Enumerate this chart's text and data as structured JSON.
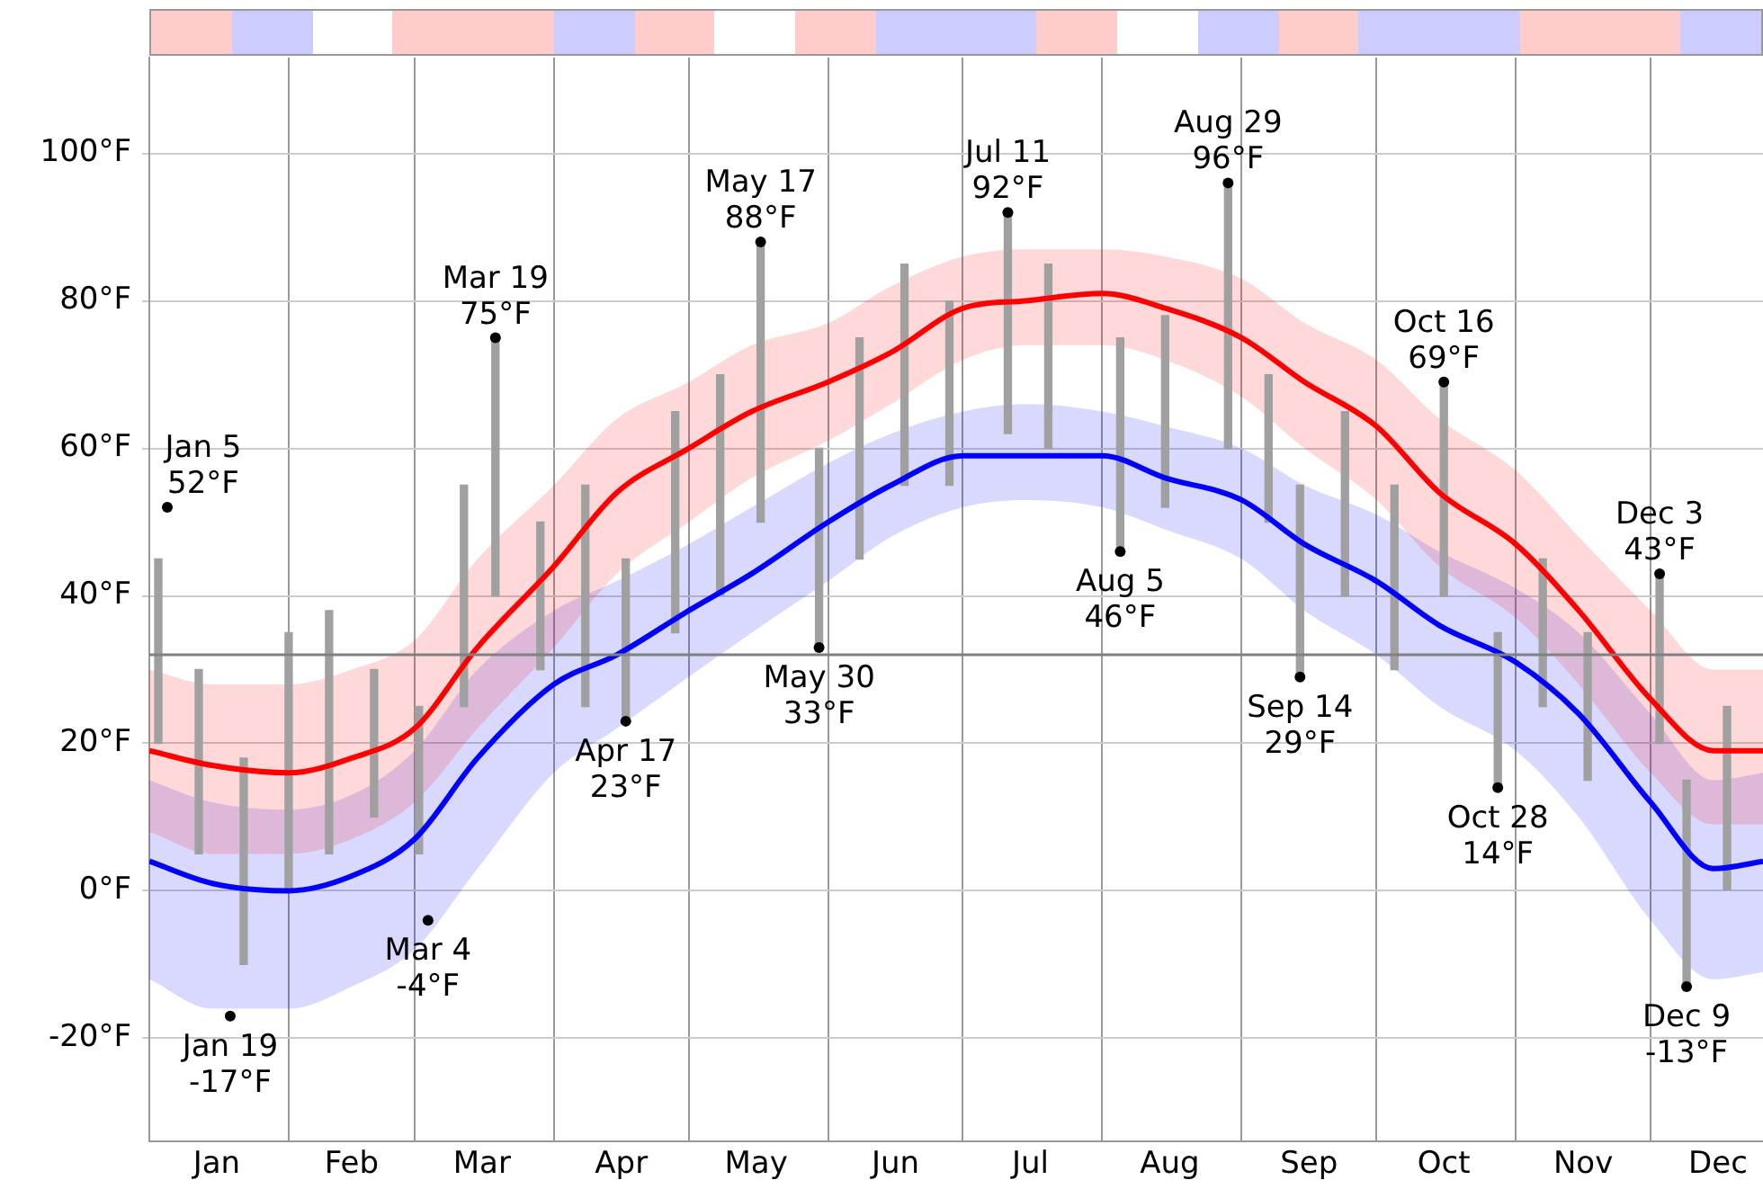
{
  "chart_data": {
    "type": "line",
    "xlim": [
      "--01-01",
      "--12-26"
    ],
    "xticks": [
      {
        "value": "--01-01",
        "label": null
      },
      {
        "value": "--01-16",
        "label": "Jan"
      },
      {
        "value": "--02-01",
        "label": null
      },
      {
        "value": "--02-15",
        "label": "Feb"
      },
      {
        "value": "--03-01",
        "label": null
      },
      {
        "value": "--03-16",
        "label": "Mar"
      },
      {
        "value": "--04-01",
        "label": null
      },
      {
        "value": "--04-16",
        "label": "Apr"
      },
      {
        "value": "--05-01",
        "label": null
      },
      {
        "value": "--05-16",
        "label": "May"
      },
      {
        "value": "--06-01",
        "label": null
      },
      {
        "value": "--06-16",
        "label": "Jun"
      },
      {
        "value": "--07-01",
        "label": null
      },
      {
        "value": "--07-16",
        "label": "Jul"
      },
      {
        "value": "--08-01",
        "label": null
      },
      {
        "value": "--08-16",
        "label": "Aug"
      },
      {
        "value": "--09-01",
        "label": null
      },
      {
        "value": "--09-16",
        "label": "Sep"
      },
      {
        "value": "--10-01",
        "label": null
      },
      {
        "value": "--10-16",
        "label": "Oct"
      },
      {
        "value": "--11-01",
        "label": null
      },
      {
        "value": "--11-16",
        "label": "Nov"
      },
      {
        "value": "--12-01",
        "label": null
      },
      {
        "value": "--12-16",
        "label": "Dec"
      }
    ],
    "ylim": [
      -34,
      113
    ],
    "yticks": [
      {
        "value": -20,
        "label": "-20°F"
      },
      {
        "value": 0,
        "label": "0°F"
      },
      {
        "value": 20,
        "label": "20°F"
      },
      {
        "value": 40,
        "label": "40°F"
      },
      {
        "value": 60,
        "label": "60°F"
      },
      {
        "value": 80,
        "label": "80°F"
      },
      {
        "value": 100,
        "label": "100°F"
      }
    ],
    "grid": true,
    "ref_lines": [
      {
        "axis": "y",
        "value": 32,
        "color": "#808080"
      }
    ],
    "series": [
      {
        "type": "bar",
        "color": "#a0a0a0",
        "x": [
          "--01-03",
          "--01-12",
          "--01-22",
          "--02-01",
          "--02-10",
          "--02-20",
          "--03-02",
          "--03-12",
          "--03-19",
          "--03-29",
          "--04-08",
          "--04-17",
          "--04-28",
          "--05-08",
          "--05-17",
          "--05-30",
          "--06-08",
          "--06-18",
          "--06-28",
          "--07-11",
          "--07-20",
          "--08-05",
          "--08-15",
          "--08-29",
          "--09-07",
          "--09-14",
          "--09-24",
          "--10-05",
          "--10-16",
          "--10-28",
          "--11-07",
          "--11-17",
          "--12-03",
          "--12-09",
          "--12-18"
        ],
        "base": [
          20,
          5,
          -10,
          0,
          5,
          10,
          5,
          25,
          40,
          30,
          25,
          23,
          35,
          40,
          50,
          33,
          45,
          55,
          55,
          62,
          60,
          46,
          52,
          60,
          50,
          29,
          40,
          30,
          40,
          14,
          25,
          15,
          20,
          -13,
          0
        ],
        "values": [
          25,
          25,
          28,
          35,
          33,
          20,
          20,
          30,
          35,
          20,
          30,
          22,
          30,
          30,
          38,
          27,
          30,
          30,
          25,
          30,
          25,
          29,
          26,
          36,
          20,
          26,
          25,
          25,
          29,
          21,
          20,
          20,
          23,
          28,
          25
        ]
      },
      {
        "color": "#ff0000",
        "x": [
          "--01-01",
          "--01-15",
          "--02-01",
          "--02-15",
          "--03-01",
          "--03-15",
          "--04-01",
          "--04-15",
          "--05-01",
          "--05-15",
          "--06-01",
          "--06-15",
          "--07-01",
          "--07-15",
          "--08-01",
          "--08-15",
          "--09-01",
          "--09-15",
          "--10-01",
          "--10-15",
          "--11-01",
          "--11-15",
          "--12-01",
          "--12-15",
          "--12-26"
        ],
        "values": [
          19,
          17,
          16,
          18,
          22,
          33,
          44,
          54,
          60,
          65,
          69,
          73,
          79,
          80,
          81,
          79,
          75,
          69,
          63,
          54,
          47,
          38,
          26,
          19,
          19
        ],
        "lower": [
          8,
          5,
          5,
          7,
          12,
          22,
          33,
          43,
          50,
          56,
          61,
          66,
          72,
          74,
          74,
          72,
          67,
          60,
          53,
          44,
          37,
          28,
          16,
          9,
          9
        ],
        "upper": [
          30,
          28,
          28,
          30,
          34,
          45,
          55,
          64,
          69,
          74,
          77,
          82,
          86,
          87,
          87,
          86,
          83,
          77,
          72,
          64,
          57,
          48,
          38,
          30,
          30
        ]
      },
      {
        "color": "#0000ff",
        "x": [
          "--01-01",
          "--01-15",
          "--02-01",
          "--02-15",
          "--03-01",
          "--03-15",
          "--04-01",
          "--04-15",
          "--05-01",
          "--05-15",
          "--06-01",
          "--06-15",
          "--07-01",
          "--07-15",
          "--08-01",
          "--08-15",
          "--09-01",
          "--09-15",
          "--10-01",
          "--10-15",
          "--11-01",
          "--11-15",
          "--12-01",
          "--12-15",
          "--12-26"
        ],
        "values": [
          4,
          1,
          0,
          2,
          7,
          18,
          28,
          32,
          38,
          43,
          50,
          55,
          59,
          59,
          59,
          56,
          53,
          47,
          42,
          36,
          31,
          24,
          12,
          3,
          4
        ],
        "lower": [
          -12,
          -16,
          -16,
          -13,
          -8,
          3,
          16,
          22,
          29,
          35,
          42,
          48,
          52,
          53,
          52,
          49,
          45,
          38,
          32,
          25,
          19,
          10,
          -4,
          -12,
          -11
        ],
        "upper": [
          15,
          12,
          11,
          13,
          19,
          30,
          38,
          42,
          47,
          52,
          58,
          62,
          65,
          66,
          65,
          63,
          60,
          55,
          51,
          46,
          41,
          35,
          24,
          15,
          16
        ]
      }
    ],
    "annotations": [
      {
        "text": "Jan 5\n52°F",
        "x": "--01-05",
        "y": 52
      },
      {
        "text": "Jan 19\n-17°F",
        "x": "--01-19",
        "y": -17
      },
      {
        "text": "Mar 4\n-4°F",
        "x": "--03-04",
        "y": -4
      },
      {
        "text": "Mar 19\n75°F",
        "x": "--03-19",
        "y": 75
      },
      {
        "text": "Apr 17\n23°F",
        "x": "--04-17",
        "y": 23
      },
      {
        "text": "May 17\n88°F",
        "x": "--05-17",
        "y": 88
      },
      {
        "text": "May 30\n33°F",
        "x": "--05-30",
        "y": 33
      },
      {
        "text": "Jul 11\n92°F",
        "x": "--07-11",
        "y": 92
      },
      {
        "text": "Aug 5\n46°F",
        "x": "--08-05",
        "y": 46
      },
      {
        "text": "Aug 29\n96°F",
        "x": "--08-29",
        "y": 96
      },
      {
        "text": "Sep 14\n29°F",
        "x": "--09-14",
        "y": 29
      },
      {
        "text": "Oct 16\n69°F",
        "x": "--10-16",
        "y": 69
      },
      {
        "text": "Oct 28\n14°F",
        "x": "--10-28",
        "y": 14
      },
      {
        "text": "Dec 3\n43°F",
        "x": "--12-03",
        "y": 43
      },
      {
        "text": "Dec 9\n-13°F",
        "x": "--12-09",
        "y": -13
      }
    ]
  }
}
